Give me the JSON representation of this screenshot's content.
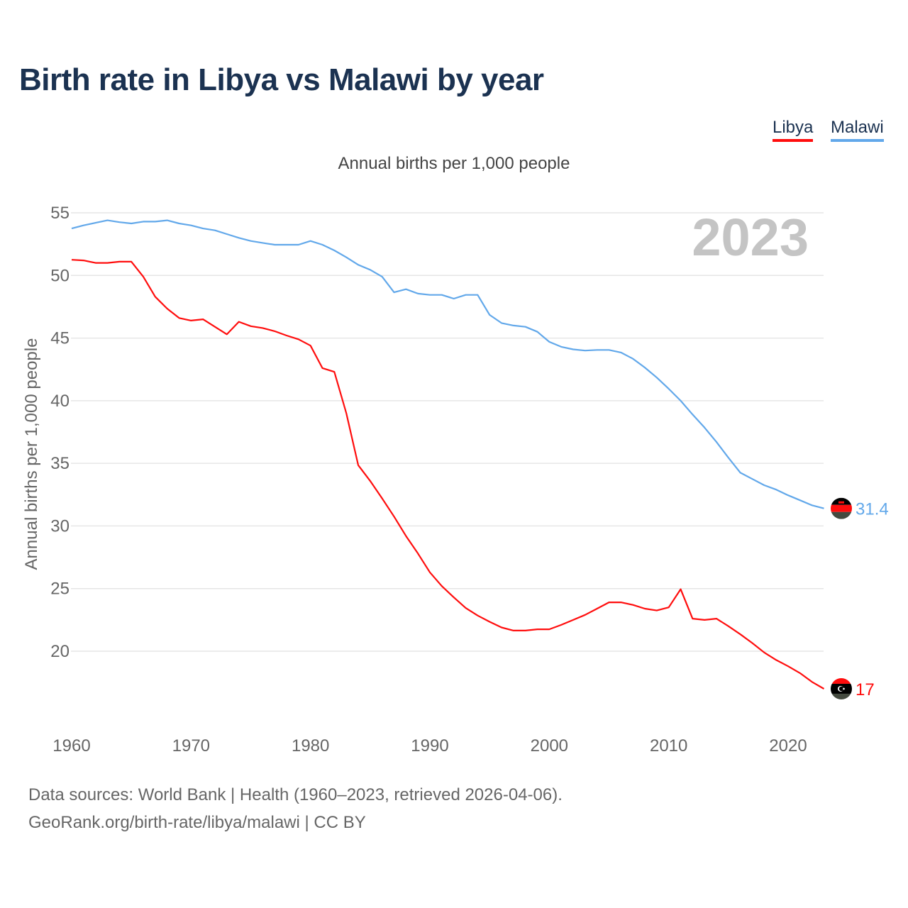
{
  "title": "Birth rate in Libya vs Malawi by year",
  "legend": [
    {
      "name": "Libya",
      "color": "#ff0d0d"
    },
    {
      "name": "Malawi",
      "color": "#62a8ea"
    }
  ],
  "chart_data": {
    "type": "line",
    "title": "Birth rate in Libya vs Malawi by year",
    "subtitle": "Annual births per 1,000 people",
    "xlabel": "",
    "ylabel": "Annual births per 1,000 people",
    "year_watermark": "2023",
    "xlim": [
      1960,
      2023
    ],
    "ylim": [
      15,
      55
    ],
    "x_ticks": [
      "1960",
      "1970",
      "1980",
      "1990",
      "2000",
      "2010",
      "2020"
    ],
    "y_ticks": [
      "20",
      "25",
      "30",
      "35",
      "40",
      "45",
      "50",
      "55"
    ],
    "grid": true,
    "legend_position": "top-right",
    "x": [
      1960,
      1961,
      1962,
      1963,
      1964,
      1965,
      1966,
      1967,
      1968,
      1969,
      1970,
      1971,
      1972,
      1973,
      1974,
      1975,
      1976,
      1977,
      1978,
      1979,
      1980,
      1981,
      1982,
      1983,
      1984,
      1985,
      1986,
      1987,
      1988,
      1989,
      1990,
      1991,
      1992,
      1993,
      1994,
      1995,
      1996,
      1997,
      1998,
      1999,
      2000,
      2001,
      2002,
      2003,
      2004,
      2005,
      2006,
      2007,
      2008,
      2009,
      2010,
      2011,
      2012,
      2013,
      2014,
      2015,
      2016,
      2017,
      2018,
      2019,
      2020,
      2021,
      2022,
      2023
    ],
    "series": [
      {
        "name": "Libya",
        "color": "#ff0d0d",
        "end_label": "17",
        "values": [
          51.25,
          51.2,
          51.0,
          51.0,
          51.1,
          51.1,
          49.9,
          48.3,
          47.35,
          46.6,
          46.4,
          46.5,
          45.9,
          45.3,
          46.3,
          45.95,
          45.8,
          45.55,
          45.2,
          44.9,
          44.4,
          42.6,
          42.3,
          39.0,
          34.85,
          33.6,
          32.2,
          30.75,
          29.2,
          27.8,
          26.3,
          25.2,
          24.3,
          23.45,
          22.85,
          22.35,
          21.9,
          21.65,
          21.65,
          21.75,
          21.75,
          22.1,
          22.5,
          22.9,
          23.4,
          23.9,
          23.9,
          23.7,
          23.4,
          23.25,
          23.5,
          24.95,
          22.6,
          22.5,
          22.6,
          22.0,
          21.35,
          20.65,
          19.9,
          19.3,
          18.8,
          18.25,
          17.55,
          17.0
        ]
      },
      {
        "name": "Malawi",
        "color": "#62a8ea",
        "end_label": "31.4",
        "values": [
          53.75,
          54.0,
          54.2,
          54.4,
          54.25,
          54.15,
          54.3,
          54.3,
          54.4,
          54.15,
          54.0,
          53.75,
          53.6,
          53.3,
          53.0,
          52.75,
          52.6,
          52.45,
          52.45,
          52.45,
          52.75,
          52.45,
          52.0,
          51.45,
          50.85,
          50.45,
          49.9,
          48.65,
          48.9,
          48.55,
          48.45,
          48.45,
          48.15,
          48.45,
          48.45,
          46.85,
          46.2,
          46.0,
          45.9,
          45.5,
          44.7,
          44.3,
          44.1,
          44.0,
          44.05,
          44.05,
          43.85,
          43.35,
          42.65,
          41.85,
          40.95,
          40.0,
          38.9,
          37.85,
          36.7,
          35.45,
          34.25,
          33.75,
          33.25,
          32.9,
          32.45,
          32.05,
          31.65,
          31.4
        ]
      }
    ]
  },
  "footer": {
    "line1": "Data sources: World Bank | Health (1960–2023, retrieved 2026-04-06).",
    "line2": "GeoRank.org/birth-rate/libya/malawi | CC BY"
  }
}
